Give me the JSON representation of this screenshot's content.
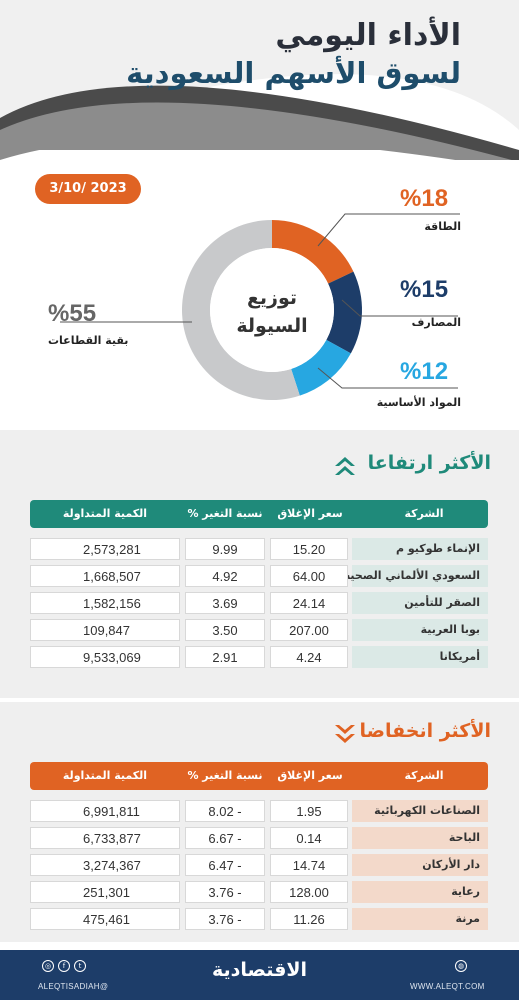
{
  "header": {
    "title_line1": "الأداء اليومي",
    "title_line2": "لسوق الأسهم السعودية",
    "date": "3/10/ 2023"
  },
  "liquidity": {
    "center_line1": "توزيع",
    "center_line2": "السيولة",
    "segments": [
      {
        "label": "الطاقة",
        "percent_text": "%18",
        "value": 18,
        "color": "#e06323"
      },
      {
        "label": "المصارف",
        "percent_text": "%15",
        "value": 15,
        "color": "#1d3d69"
      },
      {
        "label": "المواد الأساسية",
        "percent_text": "%12",
        "value": 12,
        "color": "#27a7e1"
      },
      {
        "label": "بقية القطاعات",
        "percent_text": "%55",
        "value": 55,
        "color": "#c8c9cb"
      }
    ]
  },
  "gainers": {
    "title": "الأكثر ارتفاعا",
    "color": "#1f8a7a",
    "headers": {
      "company": "الشركة",
      "close": "سعر الإغلاق",
      "change": "نسبة التغير %",
      "volume": "الكمية المتداولة"
    },
    "rows": [
      {
        "company": "الإنماء طوكيو م",
        "close": "15.20",
        "change": "9.99",
        "volume": "2,573,281"
      },
      {
        "company": "السعودي الألماني الصحية",
        "close": "64.00",
        "change": "4.92",
        "volume": "1,668,507"
      },
      {
        "company": "الصقر للتأمين",
        "close": "24.14",
        "change": "3.69",
        "volume": "1,582,156"
      },
      {
        "company": "بوبا العربية",
        "close": "207.00",
        "change": "3.50",
        "volume": "109,847"
      },
      {
        "company": "أمريكانا",
        "close": "4.24",
        "change": "2.91",
        "volume": "9,533,069"
      }
    ]
  },
  "losers": {
    "title": "الأكثر انخفاضا",
    "color": "#e06323",
    "headers": {
      "company": "الشركة",
      "close": "سعر الإغلاق",
      "change": "نسبة التغير %",
      "volume": "الكمية المتداولة"
    },
    "rows": [
      {
        "company": "الصناعات الكهربائية",
        "close": "1.95",
        "change": "8.02 -",
        "volume": "6,991,811"
      },
      {
        "company": "الباحة",
        "close": "0.14",
        "change": "6.67 -",
        "volume": "6,733,877"
      },
      {
        "company": "دار الأركان",
        "close": "14.74",
        "change": "6.47 -",
        "volume": "3,274,367"
      },
      {
        "company": "رعاية",
        "close": "128.00",
        "change": "3.76 -",
        "volume": "251,301"
      },
      {
        "company": "مرنة",
        "close": "11.26",
        "change": "3.76 -",
        "volume": "475,461"
      }
    ]
  },
  "footer": {
    "brand": "الاقتصادية",
    "handle_left": "ALEQTISADIAH@",
    "handle_right": "WWW.ALEQT.COM",
    "icons": [
      "instagram-icon",
      "facebook-icon",
      "twitter-icon",
      "globe-icon"
    ]
  }
}
